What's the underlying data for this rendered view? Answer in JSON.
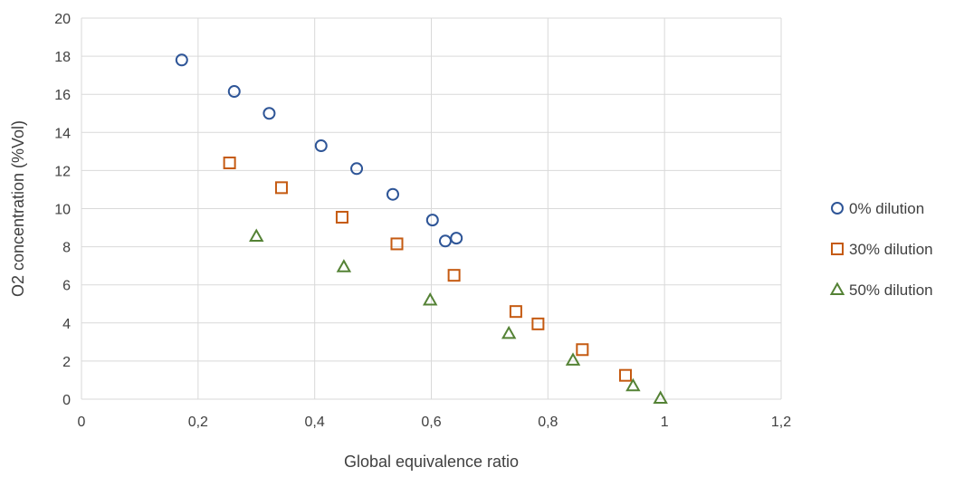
{
  "chart_data": {
    "type": "scatter",
    "title": "",
    "xlabel": "Global equivalence ratio",
    "ylabel": "O2 concentration (%Vol)",
    "xlim": [
      0,
      1.2
    ],
    "ylim": [
      0,
      20
    ],
    "x_ticks": [
      0,
      0.2,
      0.4,
      0.6,
      0.8,
      1,
      1.2
    ],
    "x_tick_labels": [
      "0",
      "0,2",
      "0,4",
      "0,6",
      "0,8",
      "1",
      "1,2"
    ],
    "y_ticks": [
      0,
      2,
      4,
      6,
      8,
      10,
      12,
      14,
      16,
      18,
      20
    ],
    "y_tick_labels": [
      "0",
      "2",
      "4",
      "6",
      "8",
      "10",
      "12",
      "14",
      "16",
      "18",
      "20"
    ],
    "grid": true,
    "legend_position": "right",
    "series": [
      {
        "name": "0% dilution",
        "marker": "circle",
        "color": "#2e5597",
        "x": [
          0.172,
          0.262,
          0.322,
          0.411,
          0.472,
          0.534,
          0.602,
          0.624,
          0.643
        ],
        "y": [
          17.8,
          16.15,
          15.0,
          13.3,
          12.1,
          10.75,
          9.4,
          8.3,
          8.45
        ]
      },
      {
        "name": "30% dilution",
        "marker": "square",
        "color": "#c55a11",
        "x": [
          0.254,
          0.343,
          0.447,
          0.541,
          0.639,
          0.745,
          0.783,
          0.859,
          0.933
        ],
        "y": [
          12.4,
          11.1,
          9.55,
          8.15,
          6.5,
          4.6,
          3.95,
          2.6,
          1.25
        ]
      },
      {
        "name": "50% dilution",
        "marker": "triangle",
        "color": "#548235",
        "x": [
          0.3,
          0.45,
          0.598,
          0.733,
          0.843,
          0.946,
          0.993
        ],
        "y": [
          8.55,
          6.95,
          5.2,
          3.45,
          2.05,
          0.7,
          0.05
        ]
      }
    ]
  }
}
